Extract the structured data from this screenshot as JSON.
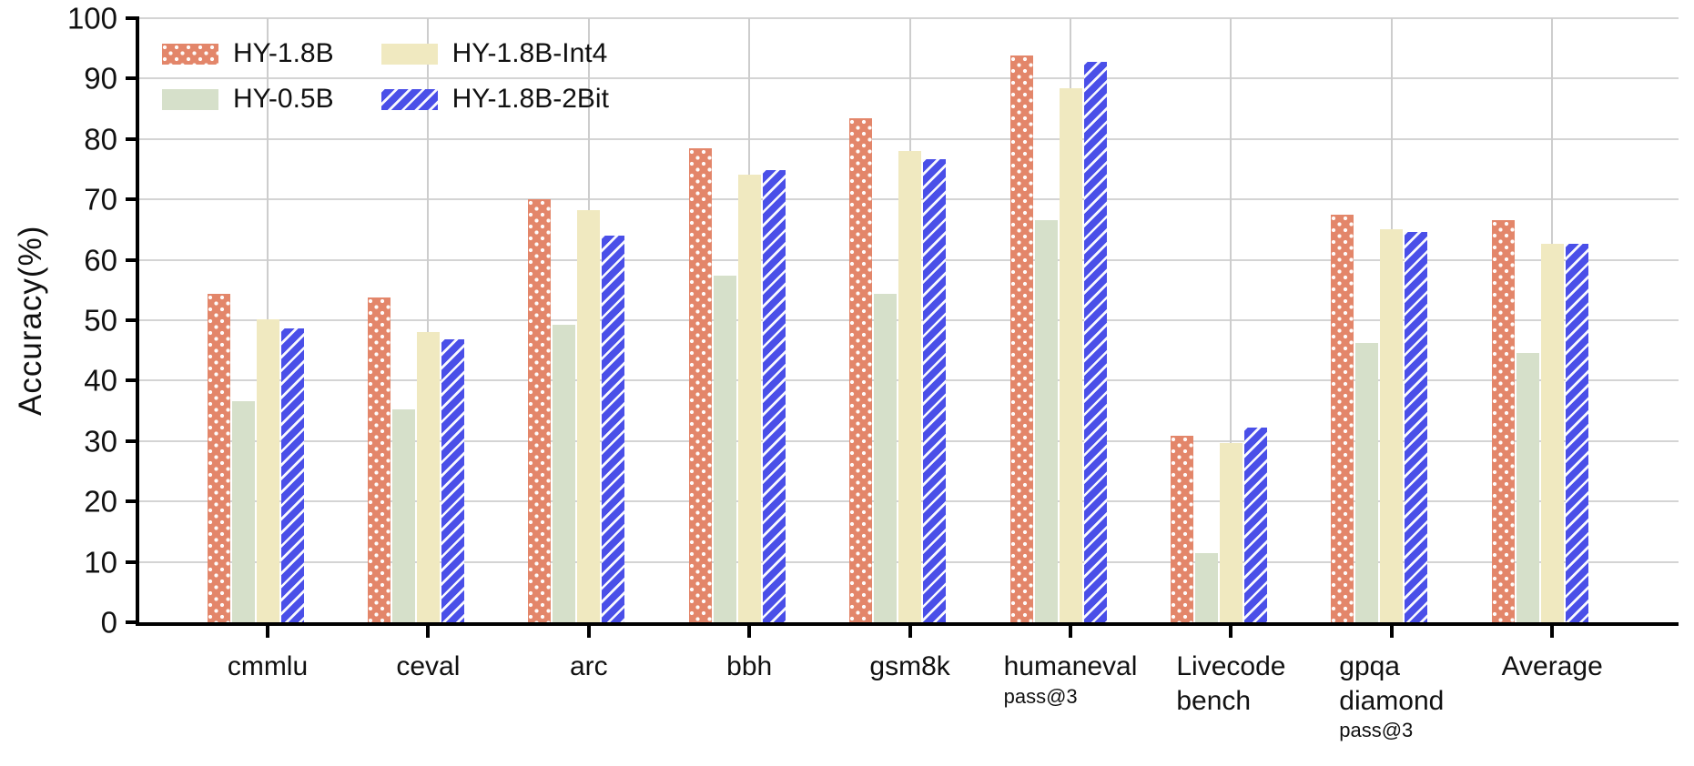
{
  "chart_data": {
    "type": "bar",
    "title": "",
    "xlabel": "",
    "ylabel": "Accuracy(%)",
    "ylim": [
      0,
      100
    ],
    "yticks": [
      0,
      10,
      20,
      30,
      40,
      50,
      60,
      70,
      80,
      90,
      100
    ],
    "grid": true,
    "legend_position": "upper-left",
    "categories": [
      {
        "label": "cmmlu",
        "sublabel": ""
      },
      {
        "label": "ceval",
        "sublabel": ""
      },
      {
        "label": "arc",
        "sublabel": ""
      },
      {
        "label": "bbh",
        "sublabel": ""
      },
      {
        "label": "gsm8k",
        "sublabel": ""
      },
      {
        "label": "humaneval",
        "sublabel": "pass@3"
      },
      {
        "label": "Livecode\nbench",
        "sublabel": ""
      },
      {
        "label": "gpqa\ndiamond",
        "sublabel": "pass@3"
      },
      {
        "label": "Average",
        "sublabel": ""
      }
    ],
    "series": [
      {
        "name": "HY-1.8B",
        "color": "#E3866A",
        "pattern": "dots",
        "values": [
          54.4,
          53.7,
          70.0,
          78.4,
          83.5,
          93.9,
          30.9,
          67.5,
          66.5
        ]
      },
      {
        "name": "HY-0.5B",
        "color": "#D6E0CA",
        "pattern": "solid",
        "values": [
          36.6,
          35.3,
          49.3,
          57.4,
          54.4,
          66.5,
          11.5,
          46.2,
          44.6
        ]
      },
      {
        "name": "HY-1.8B-Int4",
        "color": "#F0E9C0",
        "pattern": "solid",
        "values": [
          50.2,
          48.0,
          68.2,
          74.1,
          78.0,
          88.4,
          29.6,
          65.0,
          62.7
        ]
      },
      {
        "name": "HY-1.8B-2Bit",
        "color": "#4A4FE8",
        "pattern": "stripes",
        "values": [
          48.7,
          46.9,
          64.0,
          74.9,
          76.7,
          92.7,
          32.2,
          64.6,
          62.6
        ]
      }
    ]
  },
  "colors": {
    "background": "#ffffff",
    "gridline": "#d4d4d4",
    "axis": "#000000",
    "text": "#111111"
  }
}
